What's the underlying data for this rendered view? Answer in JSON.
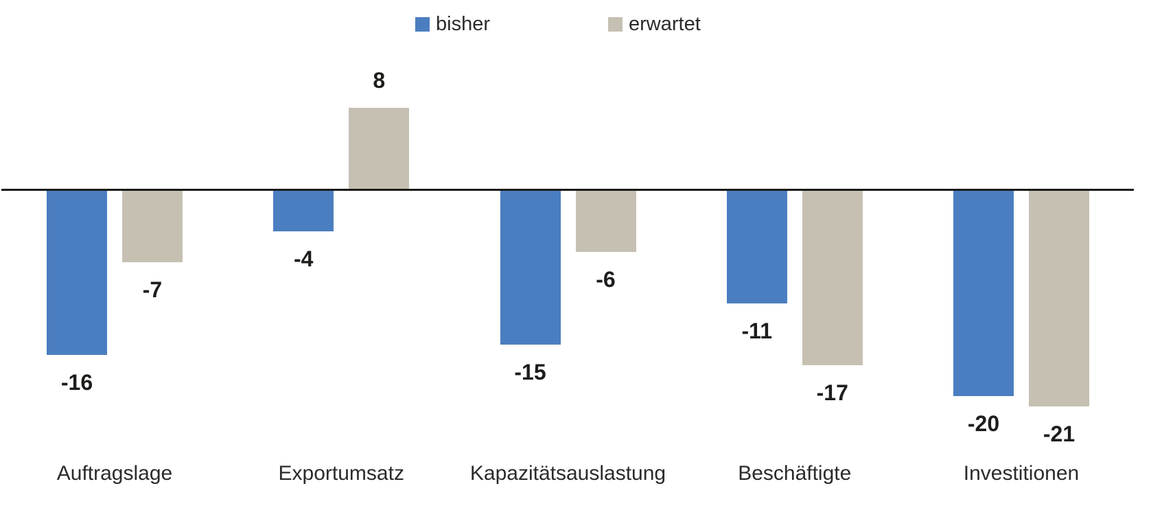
{
  "chart_data": {
    "type": "bar",
    "title": "",
    "xlabel": "",
    "ylabel": "",
    "categories": [
      "Auftragslage",
      "Exportumsatz",
      "Kapazitätsauslastung",
      "Beschäftigte",
      "Investitionen"
    ],
    "series": [
      {
        "name": "bisher",
        "color": "#4b7ec0",
        "values": [
          -16,
          -4,
          -15,
          -11,
          -20
        ]
      },
      {
        "name": "erwartet",
        "color": "#c6c0b3",
        "values": [
          -7,
          8,
          -6,
          -17,
          -21
        ]
      }
    ],
    "ylim": [
      -24,
      12
    ],
    "grid": false,
    "legend_position": "top",
    "value_labels": true,
    "axis_color": "#1a1a18"
  }
}
